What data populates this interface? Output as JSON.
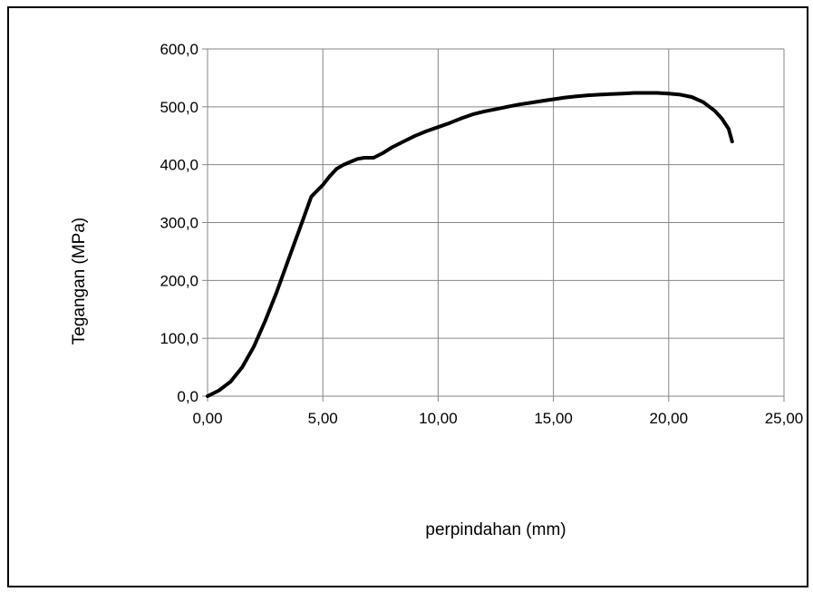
{
  "chart_data": {
    "type": "line",
    "title": "",
    "xlabel": "perpindahan (mm)",
    "ylabel": "Tegangan  (MPa)",
    "xlim": [
      0,
      25
    ],
    "ylim": [
      0,
      600
    ],
    "x_ticks": [
      "0,00",
      "5,00",
      "10,00",
      "15,00",
      "20,00",
      "25,00"
    ],
    "y_ticks": [
      "0,0",
      "100,0",
      "200,0",
      "300,0",
      "400,0",
      "500,0",
      "600,0"
    ],
    "grid": true,
    "legend": "none",
    "series": [
      {
        "color": "#000000",
        "x": [
          0,
          0.5,
          1.0,
          1.5,
          2.0,
          2.5,
          3.0,
          3.5,
          4.0,
          4.5,
          5.0,
          5.3,
          5.6,
          5.9,
          6.2,
          6.5,
          6.8,
          7.2,
          7.6,
          8.0,
          8.5,
          9.0,
          9.5,
          10.0,
          10.5,
          11.0,
          11.5,
          12.0,
          12.5,
          13.0,
          13.5,
          14.0,
          14.5,
          15.0,
          15.5,
          16.0,
          16.5,
          17.0,
          17.5,
          18.0,
          18.5,
          19.0,
          19.5,
          20.0,
          20.5,
          21.0,
          21.5,
          22.0,
          22.3,
          22.6,
          22.75
        ],
        "y": [
          0,
          10,
          25,
          50,
          85,
          130,
          180,
          235,
          290,
          345,
          365,
          380,
          393,
          400,
          405,
          410,
          412,
          412,
          420,
          430,
          440,
          450,
          458,
          465,
          472,
          480,
          487,
          492,
          496,
          500,
          504,
          507,
          510,
          513,
          516,
          518,
          520,
          521,
          522,
          523,
          524,
          524,
          524,
          523,
          521,
          517,
          508,
          493,
          480,
          462,
          440
        ]
      }
    ],
    "annotations": []
  }
}
